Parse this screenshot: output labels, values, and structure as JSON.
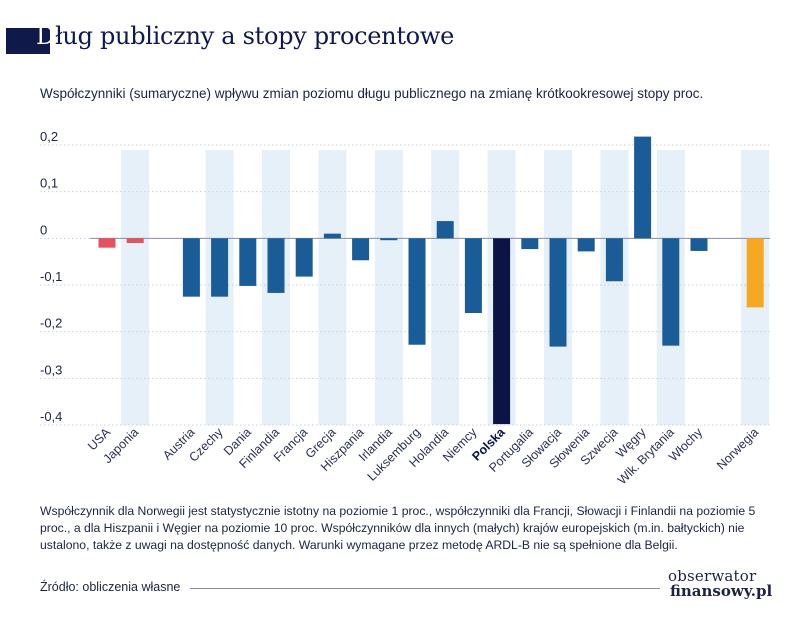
{
  "header": {
    "title_first": "D",
    "title_rest": "ług publiczny a stopy procentowe",
    "subtitle": "Współczynniki (sumaryczne) wpływu zmian poziomu długu publicznego na zmianę krótkookresowej stopy proc."
  },
  "chart_data": {
    "type": "bar",
    "title": "",
    "xlabel": "",
    "ylabel": "",
    "ylim": [
      -0.4,
      0.2
    ],
    "yticks": [
      "0,2",
      "0,1",
      "0",
      "-0,1",
      "-0,2",
      "-0,3",
      "-0,4"
    ],
    "grid": true,
    "categories": [
      "USA",
      "Japonia",
      "Austria",
      "Czechy",
      "Dania",
      "Finlandia",
      "Francja",
      "Grecja",
      "Hiszpania",
      "Irlandia",
      "Luksemburg",
      "Holandia",
      "Niemcy",
      "Polska",
      "Portugalia",
      "Słowacja",
      "Słowenia",
      "Szwecja",
      "Węgry",
      "Wlk. Brytania",
      "Włochy",
      "Norwegia"
    ],
    "values": [
      -0.02,
      -0.01,
      -0.125,
      -0.125,
      -0.102,
      -0.117,
      -0.082,
      0.01,
      -0.047,
      -0.004,
      -0.228,
      0.037,
      -0.16,
      -0.398,
      -0.023,
      -0.232,
      -0.028,
      -0.092,
      0.218,
      -0.23,
      -0.027,
      -0.148
    ],
    "colors": {
      "usa_japan": "#e8505b",
      "europe": "#1a5c98",
      "poland": "#0c1445",
      "norway": "#f7a823",
      "band": "#e6f0f8",
      "grid": "#c9cfdb",
      "axis": "#8a8fa3"
    },
    "highlight": "Polska"
  },
  "footnote": "Współczynnik dla Norwegii jest statystycznie istotny na poziomie 1 proc., współczynniki dla Francji, Słowacji i Finlandii na poziomie 5 proc., a dla Hiszpanii i Węgier na poziomie 10 proc.  Współczynników dla innych (małych) krajów europejskich (m.in. bałtyckich) nie ustalono, także z uwagi na dostępność danych. Warunki wymagane przez metodę ARDL-B nie są spełnione dla Belgii.",
  "source": "Źródło: obliczenia własne",
  "logo": {
    "line1": "obserwator",
    "line2": "finansowy.pl"
  }
}
